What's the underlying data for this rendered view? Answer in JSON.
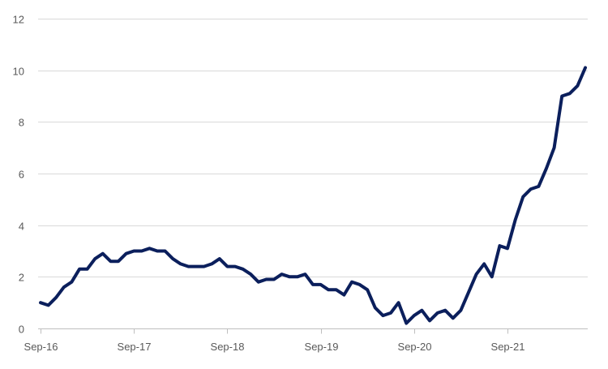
{
  "chart_data": {
    "type": "line",
    "title": "",
    "xlabel": "",
    "ylabel": "",
    "ylim": [
      0,
      12
    ],
    "y_ticks": [
      0,
      2,
      4,
      6,
      8,
      10,
      12
    ],
    "x_tick_labels": [
      "Sep-16",
      "Sep-17",
      "Sep-18",
      "Sep-19",
      "Sep-20",
      "Sep-21"
    ],
    "grid": "horizontal",
    "legend": "none",
    "series": [
      {
        "color": "#0b1f5c",
        "x": [
          "Sep-16",
          "Oct-16",
          "Nov-16",
          "Dec-16",
          "Jan-17",
          "Feb-17",
          "Mar-17",
          "Apr-17",
          "May-17",
          "Jun-17",
          "Jul-17",
          "Aug-17",
          "Sep-17",
          "Oct-17",
          "Nov-17",
          "Dec-17",
          "Jan-18",
          "Feb-18",
          "Mar-18",
          "Apr-18",
          "May-18",
          "Jun-18",
          "Jul-18",
          "Aug-18",
          "Sep-18",
          "Oct-18",
          "Nov-18",
          "Dec-18",
          "Jan-19",
          "Feb-19",
          "Mar-19",
          "Apr-19",
          "May-19",
          "Jun-19",
          "Jul-19",
          "Aug-19",
          "Sep-19",
          "Oct-19",
          "Nov-19",
          "Dec-19",
          "Jan-20",
          "Feb-20",
          "Mar-20",
          "Apr-20",
          "May-20",
          "Jun-20",
          "Jul-20",
          "Aug-20",
          "Sep-20",
          "Oct-20",
          "Nov-20",
          "Dec-20",
          "Jan-21",
          "Feb-21",
          "Mar-21",
          "Apr-21",
          "May-21",
          "Jun-21",
          "Jul-21",
          "Aug-21",
          "Sep-21",
          "Oct-21",
          "Nov-21",
          "Dec-21",
          "Jan-22",
          "Feb-22",
          "Mar-22",
          "Apr-22",
          "May-22",
          "Jun-22",
          "Jul-22"
        ],
        "values": [
          1.0,
          0.9,
          1.2,
          1.6,
          1.8,
          2.3,
          2.3,
          2.7,
          2.9,
          2.6,
          2.6,
          2.9,
          3.0,
          3.0,
          3.1,
          3.0,
          3.0,
          2.7,
          2.5,
          2.4,
          2.4,
          2.4,
          2.5,
          2.7,
          2.4,
          2.4,
          2.3,
          2.1,
          1.8,
          1.9,
          1.9,
          2.1,
          2.0,
          2.0,
          2.1,
          1.7,
          1.7,
          1.5,
          1.5,
          1.3,
          1.8,
          1.7,
          1.5,
          0.8,
          0.5,
          0.6,
          1.0,
          0.2,
          0.5,
          0.7,
          0.3,
          0.6,
          0.7,
          0.4,
          0.7,
          1.4,
          2.1,
          2.5,
          2.0,
          3.2,
          3.1,
          4.2,
          5.1,
          5.4,
          5.5,
          6.2,
          7.0,
          9.0,
          9.1,
          9.4,
          10.1
        ]
      }
    ]
  }
}
